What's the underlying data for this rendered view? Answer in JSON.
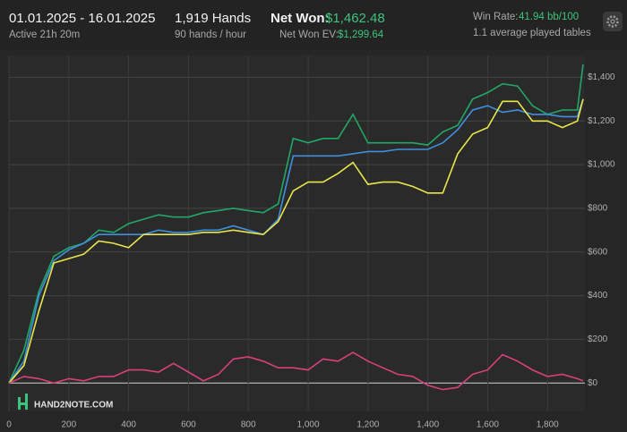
{
  "header": {
    "date_range": "01.01.2025 - 16.01.2025",
    "active": "Active 21h 20m",
    "hands": "1,919 Hands",
    "hands_per_hour": "90 hands / hour",
    "net_won_label": "Net Won:",
    "net_won": "$1,462.48",
    "ev_label": "Net Won  EV:",
    "ev": "$1,299.64",
    "win_rate_label": "Win Rate:",
    "win_rate": "41.94 bb/100",
    "tables": "1.1 average played tables"
  },
  "logo": "HAND2NOTE.COM",
  "chart_data": {
    "type": "line",
    "x": [
      0,
      50,
      100,
      150,
      200,
      250,
      300,
      350,
      400,
      450,
      500,
      550,
      600,
      650,
      700,
      750,
      800,
      850,
      900,
      950,
      1000,
      1050,
      1100,
      1150,
      1200,
      1250,
      1300,
      1350,
      1400,
      1450,
      1500,
      1550,
      1600,
      1650,
      1700,
      1750,
      1800,
      1850,
      1900,
      1919
    ],
    "series": [
      {
        "color": "#22a866",
        "values": [
          0,
          150,
          420,
          580,
          620,
          640,
          700,
          690,
          730,
          750,
          770,
          760,
          760,
          780,
          790,
          800,
          790,
          780,
          820,
          1120,
          1100,
          1120,
          1120,
          1230,
          1100,
          1100,
          1100,
          1100,
          1090,
          1150,
          1180,
          1300,
          1330,
          1370,
          1360,
          1270,
          1230,
          1250,
          1250,
          1460
        ]
      },
      {
        "color": "#3f8fe0",
        "values": [
          0,
          100,
          400,
          560,
          610,
          640,
          680,
          680,
          680,
          680,
          700,
          690,
          690,
          700,
          700,
          720,
          700,
          680,
          750,
          1040,
          1040,
          1040,
          1040,
          1050,
          1060,
          1060,
          1070,
          1070,
          1070,
          1100,
          1160,
          1250,
          1270,
          1240,
          1250,
          1230,
          1230,
          1220,
          1220,
          1300
        ]
      },
      {
        "color": "#e8e64a",
        "values": [
          0,
          80,
          330,
          550,
          570,
          590,
          650,
          640,
          620,
          680,
          680,
          680,
          680,
          690,
          690,
          700,
          690,
          680,
          740,
          880,
          920,
          920,
          960,
          1010,
          910,
          920,
          920,
          900,
          870,
          870,
          1050,
          1140,
          1170,
          1290,
          1290,
          1200,
          1200,
          1170,
          1200,
          1300
        ]
      },
      {
        "color": "#d8407a",
        "values": [
          0,
          30,
          20,
          0,
          20,
          10,
          30,
          30,
          60,
          60,
          50,
          90,
          50,
          10,
          40,
          110,
          120,
          100,
          70,
          70,
          60,
          110,
          100,
          140,
          100,
          70,
          40,
          30,
          -10,
          -30,
          -20,
          40,
          60,
          130,
          100,
          60,
          30,
          40,
          20,
          10
        ]
      }
    ],
    "xlim": [
      0,
      1925
    ],
    "ylim": [
      -130,
      1500
    ],
    "xticks": [
      0,
      200,
      400,
      600,
      800,
      {
        "value": 1000,
        "label": "1,000"
      },
      {
        "value": 1200,
        "label": "1,200"
      },
      {
        "value": 1400,
        "label": "1,400"
      },
      {
        "value": 1600,
        "label": "1,600"
      },
      {
        "value": 1800,
        "label": "1,800"
      }
    ],
    "yticks": [
      {
        "value": 0,
        "label": "$0"
      },
      {
        "value": 200,
        "label": "$200"
      },
      {
        "value": 400,
        "label": "$400"
      },
      {
        "value": 600,
        "label": "$600"
      },
      {
        "value": 800,
        "label": "$800"
      },
      {
        "value": 1000,
        "label": "$1,000"
      },
      {
        "value": 1200,
        "label": "$1,200"
      },
      {
        "value": 1400,
        "label": "$1,400"
      }
    ],
    "grid": true
  }
}
